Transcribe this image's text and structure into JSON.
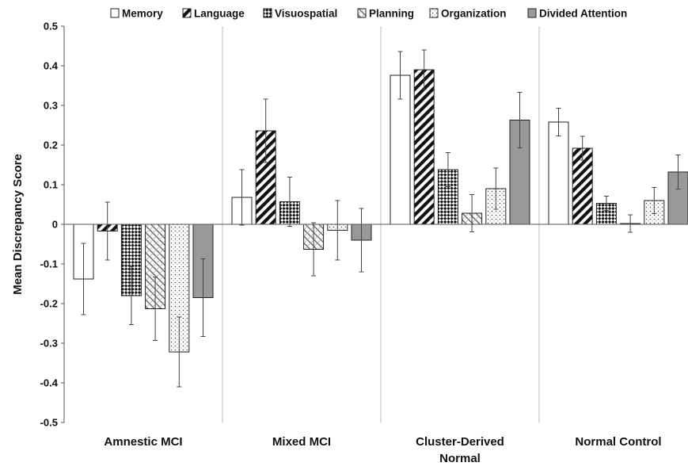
{
  "chart_data": {
    "type": "bar",
    "title": "",
    "xlabel": "",
    "ylabel": "Mean Discrepancy Score",
    "ylim": [
      -0.5,
      0.5
    ],
    "yticks": [
      0.5,
      0.4,
      0.3,
      0.2,
      0.1,
      0,
      -0.1,
      -0.2,
      -0.3,
      -0.4,
      -0.5
    ],
    "ytick_labels": [
      "0.5",
      "0.4",
      "0.3",
      "0.2",
      "0.1",
      "0",
      "-0.1",
      "-0.2",
      "-0.3",
      "-0.4",
      "-0.5"
    ],
    "categories": [
      [
        "Amnestic MCI"
      ],
      [
        "Mixed MCI"
      ],
      [
        "Cluster-Derived",
        "Normal"
      ],
      [
        "Normal Control"
      ]
    ],
    "legend_position": "top",
    "grid": false,
    "group_separators": true,
    "series": [
      {
        "name": "Memory",
        "pattern": "white",
        "values": [
          -0.138,
          0.068,
          0.376,
          0.258
        ],
        "errors": [
          0.09,
          0.07,
          0.06,
          0.035
        ]
      },
      {
        "name": "Language",
        "pattern": "diagonal",
        "values": [
          -0.017,
          0.236,
          0.39,
          0.192
        ],
        "errors": [
          0.073,
          0.08,
          0.05,
          0.03
        ]
      },
      {
        "name": "Visuospatial",
        "pattern": "checker",
        "values": [
          -0.18,
          0.057,
          0.138,
          0.053
        ],
        "errors": [
          0.073,
          0.062,
          0.043,
          0.018
        ]
      },
      {
        "name": "Planning",
        "pattern": "light-diagonal",
        "values": [
          -0.213,
          -0.063,
          0.028,
          0.002
        ],
        "errors": [
          0.08,
          0.067,
          0.047,
          0.022
        ]
      },
      {
        "name": "Organization",
        "pattern": "dots",
        "values": [
          -0.322,
          -0.015,
          0.09,
          0.06
        ],
        "errors": [
          0.088,
          0.075,
          0.052,
          0.033
        ]
      },
      {
        "name": "Divided Attention",
        "pattern": "gray",
        "values": [
          -0.185,
          -0.04,
          0.263,
          0.132
        ],
        "errors": [
          0.098,
          0.08,
          0.07,
          0.043
        ]
      }
    ],
    "colors": {
      "gray_fill": "#999999",
      "outline": "#222222",
      "separator": "#bbbbbb"
    }
  }
}
